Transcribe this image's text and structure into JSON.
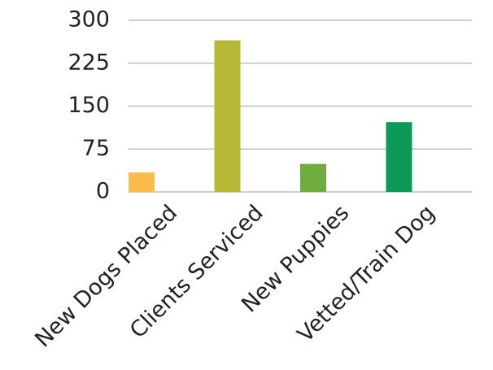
{
  "chart_data": {
    "type": "bar",
    "categories": [
      "New Dogs Placed",
      "Clients Serviced",
      "New Puppies",
      "Vetted/Train Dog"
    ],
    "values": [
      34,
      265,
      49,
      122
    ],
    "colors": [
      "#fbbd4a",
      "#b5b935",
      "#6fab3e",
      "#0a9a55"
    ],
    "ylim": [
      0,
      300
    ],
    "yticks": [
      0,
      75,
      150,
      225,
      300
    ],
    "grid": true
  }
}
